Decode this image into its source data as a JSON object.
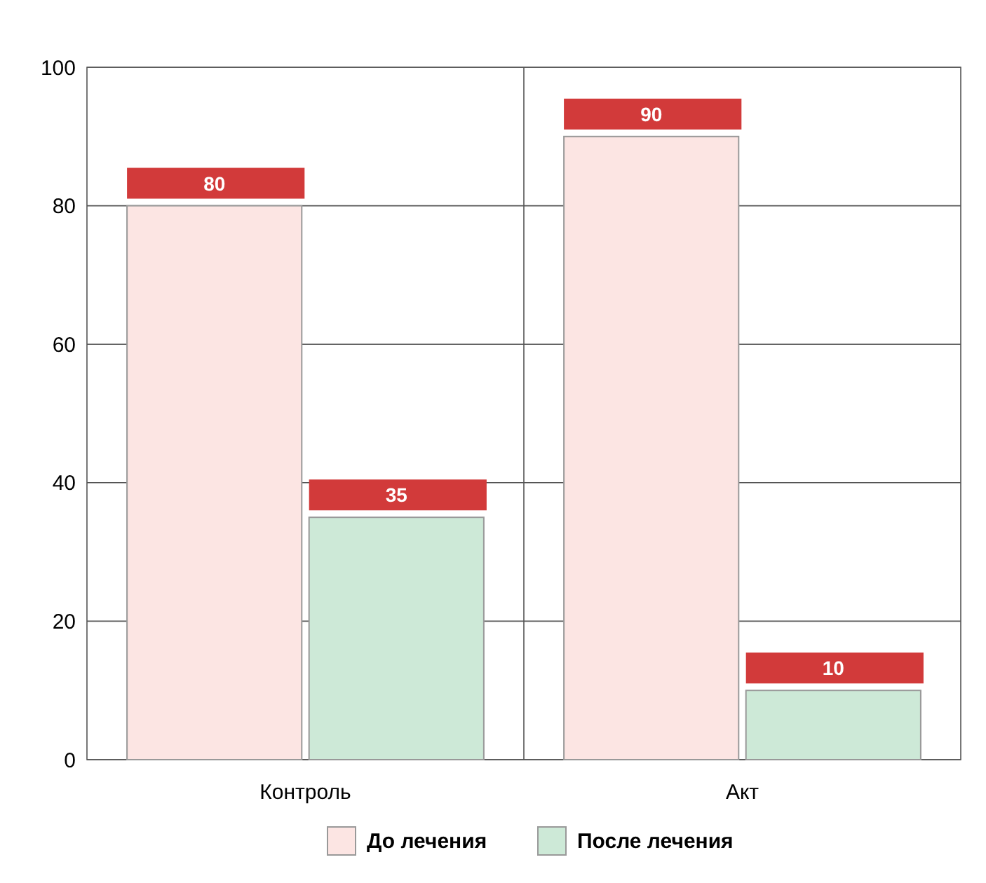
{
  "chart_data": {
    "type": "bar",
    "categories": [
      "Контроль",
      "Акт"
    ],
    "series": [
      {
        "name": "До лечения",
        "color": "#fce5e3",
        "values": [
          80,
          90
        ]
      },
      {
        "name": "После лечения",
        "color": "#cde9d7",
        "values": [
          35,
          10
        ]
      }
    ],
    "ylim": [
      0,
      100
    ],
    "yticks": [
      0,
      20,
      40,
      60,
      80,
      100
    ],
    "grid": true,
    "legend": "bottom",
    "data_labels": true
  }
}
